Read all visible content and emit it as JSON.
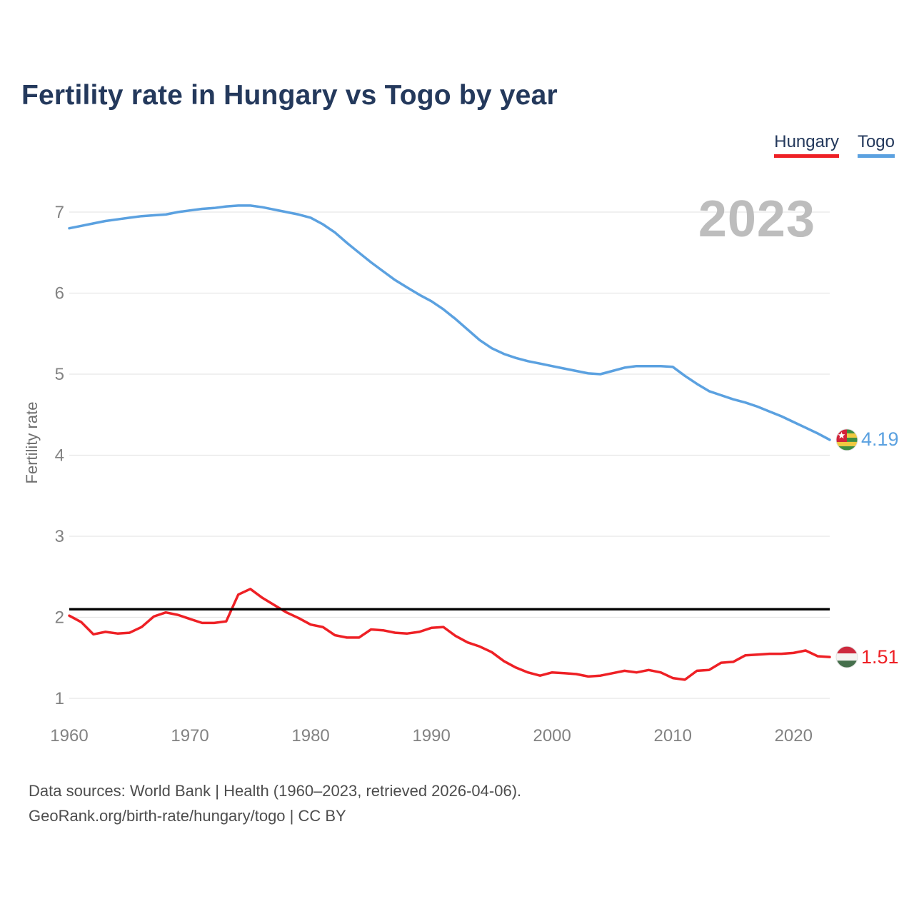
{
  "page": {
    "title": "Fertility rate in Hungary vs Togo by year",
    "watermark_year": "2023",
    "footer_line1": "Data sources: World Bank | Health (1960–2023, retrieved 2026-04-06).",
    "footer_line2": "GeoRank.org/birth-rate/hungary/togo | CC BY"
  },
  "legend": {
    "items": [
      {
        "label": "Hungary",
        "color": "#ee2025"
      },
      {
        "label": "Togo",
        "color": "#5ba1e0"
      }
    ]
  },
  "end_labels": [
    {
      "series": "Togo",
      "value": "4.19",
      "color": "#5ba1e0",
      "flag": "togo-flag-icon"
    },
    {
      "series": "Hungary",
      "value": "1.51",
      "color": "#ee2025",
      "flag": "hungary-flag-icon"
    }
  ],
  "flags": {
    "togo": {
      "green": "#3d8e41",
      "yellow": "#efc940",
      "red": "#d32239",
      "star": "#ffffff"
    },
    "hungary": {
      "red": "#cd2a3e",
      "white": "#f5f4f2",
      "green": "#456f4c"
    }
  },
  "colors": {
    "title": "#24395c",
    "gridline": "#e7e7e7",
    "tick_text": "#828282",
    "axis_title_text": "#6f6f6f",
    "watermark": "#bdbdbd",
    "footer_text": "#4d4d4d",
    "reference_line": "#000000"
  },
  "chart_data": {
    "type": "line",
    "title": "Fertility rate in Hungary vs Togo by year",
    "xlabel": "",
    "ylabel": "Fertility rate",
    "grid": "horizontal",
    "legend_position": "top-right",
    "ylim": [
      1,
      7.4
    ],
    "yticks": [
      1,
      2,
      3,
      4,
      5,
      6,
      7
    ],
    "xticks": [
      1960,
      1970,
      1980,
      1990,
      2000,
      2010,
      2020
    ],
    "reference_line": {
      "value": 2.1,
      "color": "#000000"
    },
    "x": [
      1960,
      1961,
      1962,
      1963,
      1964,
      1965,
      1966,
      1967,
      1968,
      1969,
      1970,
      1971,
      1972,
      1973,
      1974,
      1975,
      1976,
      1977,
      1978,
      1979,
      1980,
      1981,
      1982,
      1983,
      1984,
      1985,
      1986,
      1987,
      1988,
      1989,
      1990,
      1991,
      1992,
      1993,
      1994,
      1995,
      1996,
      1997,
      1998,
      1999,
      2000,
      2001,
      2002,
      2003,
      2004,
      2005,
      2006,
      2007,
      2008,
      2009,
      2010,
      2011,
      2012,
      2013,
      2014,
      2015,
      2016,
      2017,
      2018,
      2019,
      2020,
      2021,
      2022,
      2023
    ],
    "series": [
      {
        "name": "Hungary",
        "color": "#ee2025",
        "final_value": 1.51,
        "values": [
          2.02,
          1.94,
          1.79,
          1.82,
          1.8,
          1.81,
          1.88,
          2.01,
          2.06,
          2.03,
          1.98,
          1.93,
          1.93,
          1.95,
          2.28,
          2.35,
          2.24,
          2.15,
          2.06,
          1.99,
          1.91,
          1.88,
          1.78,
          1.75,
          1.75,
          1.85,
          1.84,
          1.81,
          1.8,
          1.82,
          1.87,
          1.88,
          1.77,
          1.69,
          1.64,
          1.57,
          1.46,
          1.38,
          1.32,
          1.28,
          1.32,
          1.31,
          1.3,
          1.27,
          1.28,
          1.31,
          1.34,
          1.32,
          1.35,
          1.32,
          1.25,
          1.23,
          1.34,
          1.35,
          1.44,
          1.45,
          1.53,
          1.54,
          1.55,
          1.55,
          1.56,
          1.59,
          1.52,
          1.51
        ]
      },
      {
        "name": "Togo",
        "color": "#5ba1e0",
        "final_value": 4.19,
        "values": [
          6.8,
          6.83,
          6.86,
          6.89,
          6.91,
          6.93,
          6.95,
          6.96,
          6.97,
          7.0,
          7.02,
          7.04,
          7.05,
          7.07,
          7.08,
          7.08,
          7.06,
          7.03,
          7.0,
          6.97,
          6.93,
          6.85,
          6.75,
          6.62,
          6.5,
          6.38,
          6.27,
          6.16,
          6.07,
          5.98,
          5.9,
          5.8,
          5.68,
          5.55,
          5.42,
          5.32,
          5.25,
          5.2,
          5.16,
          5.13,
          5.1,
          5.07,
          5.04,
          5.01,
          5.0,
          5.04,
          5.08,
          5.1,
          5.1,
          5.1,
          5.09,
          4.98,
          4.88,
          4.79,
          4.74,
          4.69,
          4.65,
          4.6,
          4.54,
          4.48,
          4.41,
          4.34,
          4.27,
          4.19
        ]
      }
    ]
  }
}
